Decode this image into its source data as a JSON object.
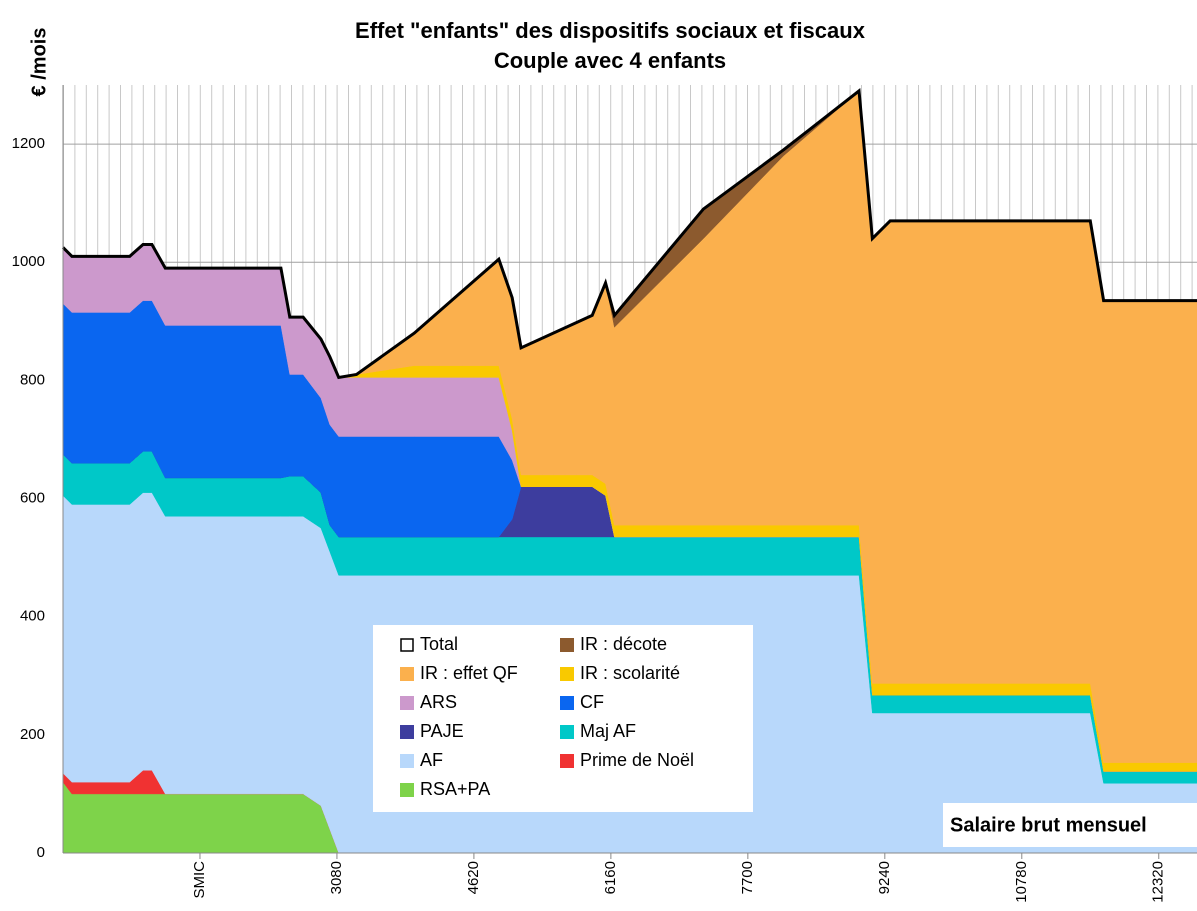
{
  "chart_data": {
    "type": "stacked_area",
    "title": "Effet \"enfants\" des dispositifs sociaux et fiscaux",
    "subtitle": "Couple avec 4 enfants",
    "y_label": "€ /mois",
    "x_label": "Salaire brut mensuel",
    "xlim": [
      0,
      12750
    ],
    "ylim": [
      0,
      1300
    ],
    "xticks": [
      {
        "value": 1540,
        "label": "SMIC"
      },
      3080,
      4620,
      6160,
      7700,
      9240,
      10780,
      12320
    ],
    "yticks": [
      0,
      200,
      400,
      600,
      800,
      1000,
      1200
    ],
    "grid": true,
    "x": [
      0,
      100,
      750,
      900,
      1000,
      1150,
      2450,
      2550,
      2700,
      2900,
      3000,
      3100,
      3300,
      3950,
      4900,
      5050,
      5150,
      5950,
      6100,
      6200,
      7200,
      8100,
      8950,
      9100,
      9300,
      11550,
      11700,
      12750
    ],
    "total": {
      "name": "Total",
      "color": "#000000",
      "values": [
        1025,
        1010,
        1010,
        1030,
        1030,
        990,
        990,
        907,
        907,
        870,
        840,
        805,
        810,
        880,
        1005,
        940,
        855,
        910,
        965,
        910,
        1090,
        1190,
        1290,
        1040,
        1070,
        1070,
        935,
        935
      ]
    },
    "series": [
      {
        "name": "IR : décote",
        "color": "#8c5a2e",
        "values": [
          0,
          0,
          0,
          0,
          0,
          0,
          0,
          0,
          0,
          0,
          0,
          0,
          0,
          0,
          0,
          0,
          0,
          0,
          0,
          20,
          50,
          10,
          0,
          0,
          0,
          0,
          0,
          0
        ]
      },
      {
        "name": "IR : effet QF",
        "color": "#fbb04d",
        "values": [
          0,
          0,
          0,
          0,
          0,
          0,
          0,
          0,
          0,
          0,
          0,
          0,
          0,
          55,
          180,
          205,
          215,
          270,
          340,
          335,
          485,
          625,
          735,
          753,
          783,
          783,
          782,
          782
        ]
      },
      {
        "name": "IR : scolarité",
        "color": "#f9c900",
        "values": [
          0,
          0,
          0,
          0,
          0,
          0,
          0,
          0,
          0,
          0,
          0,
          0,
          5,
          20,
          20,
          20,
          20,
          20,
          20,
          20,
          20,
          20,
          20,
          20,
          20,
          20,
          15,
          15
        ]
      },
      {
        "name": "ARS",
        "color": "#cc99cc",
        "values": [
          95,
          95,
          95,
          95,
          95,
          97,
          97,
          97,
          97,
          100,
          115,
          100,
          100,
          100,
          100,
          50,
          0,
          0,
          0,
          0,
          0,
          0,
          0,
          0,
          0,
          0,
          0,
          0
        ]
      },
      {
        "name": "CF",
        "color": "#0a66f0",
        "values": [
          255,
          255,
          255,
          255,
          255,
          258,
          258,
          172,
          172,
          160,
          170,
          170,
          170,
          170,
          170,
          100,
          0,
          0,
          0,
          0,
          0,
          0,
          0,
          0,
          0,
          0,
          0,
          0
        ]
      },
      {
        "name": "PAJE",
        "color": "#3d3d9e",
        "values": [
          0,
          0,
          0,
          0,
          0,
          0,
          0,
          0,
          0,
          0,
          0,
          0,
          0,
          0,
          0,
          30,
          85,
          85,
          70,
          0,
          0,
          0,
          0,
          0,
          0,
          0,
          0,
          0
        ]
      },
      {
        "name": "Maj AF",
        "color": "#00c8c8",
        "values": [
          70,
          70,
          70,
          70,
          70,
          65,
          65,
          68,
          68,
          60,
          45,
          65,
          65,
          65,
          65,
          65,
          65,
          65,
          65,
          65,
          65,
          65,
          65,
          30,
          30,
          30,
          20,
          20
        ]
      },
      {
        "name": "AF",
        "color": "#b8d8fb",
        "values": [
          470,
          470,
          470,
          470,
          470,
          470,
          470,
          470,
          470,
          470,
          470,
          470,
          470,
          470,
          470,
          470,
          470,
          470,
          470,
          470,
          470,
          470,
          470,
          237,
          237,
          237,
          118,
          118
        ]
      },
      {
        "name": "Prime de Noël",
        "color": "#f03232",
        "values": [
          15,
          20,
          20,
          40,
          40,
          0,
          0,
          0,
          0,
          0,
          0,
          0,
          0,
          0,
          0,
          0,
          0,
          0,
          0,
          0,
          0,
          0,
          0,
          0,
          0,
          0,
          0,
          0
        ]
      },
      {
        "name": "RSA+PA",
        "color": "#7ed34a",
        "values": [
          120,
          100,
          100,
          100,
          100,
          100,
          100,
          100,
          100,
          80,
          40,
          0,
          0,
          0,
          0,
          0,
          0,
          0,
          0,
          0,
          0,
          0,
          0,
          0,
          0,
          0,
          0,
          0
        ]
      }
    ]
  }
}
